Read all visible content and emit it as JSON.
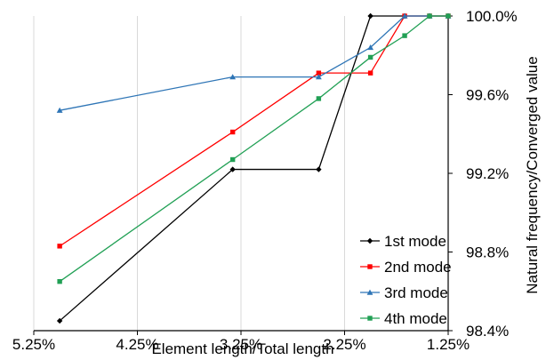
{
  "chart_data": {
    "type": "line",
    "xlabel": "Element length/Total length",
    "ylabel": "Natural frequency/Converged value",
    "xlim": [
      5.25,
      1.25
    ],
    "x_reversed": true,
    "ylim": [
      98.4,
      100.0
    ],
    "x_ticks": [
      5.25,
      4.25,
      3.25,
      2.25,
      1.25
    ],
    "x_tick_labels": [
      "5.25%",
      "4.25%",
      "3.25%",
      "2.25%",
      "1.25%"
    ],
    "y_ticks": [
      98.4,
      98.8,
      99.2,
      99.6,
      100.0
    ],
    "y_tick_labels": [
      "98.4%",
      "98.8%",
      "99.2%",
      "99.6%",
      "100.0%"
    ],
    "y_axis_side": "right",
    "grid": {
      "vertical": true,
      "horizontal": false
    },
    "legend": {
      "placement": "bottom-right"
    },
    "x": [
      5.0,
      3.33,
      2.5,
      2.0,
      1.67,
      1.43,
      1.25
    ],
    "series": [
      {
        "name": "1st mode",
        "color": "#000000",
        "marker": "diamond",
        "values": [
          98.45,
          99.22,
          99.22,
          100.0,
          100.0,
          100.0,
          100.0
        ]
      },
      {
        "name": "2nd mode",
        "color": "#ff0000",
        "marker": "square",
        "values": [
          98.83,
          99.41,
          99.71,
          99.71,
          100.0,
          100.0,
          100.0
        ]
      },
      {
        "name": "3rd mode",
        "color": "#2e75b6",
        "marker": "triangle",
        "values": [
          99.52,
          99.69,
          99.69,
          99.84,
          100.0,
          100.0,
          100.0
        ]
      },
      {
        "name": "4th mode",
        "color": "#21a055",
        "marker": "square",
        "values": [
          98.65,
          99.27,
          99.58,
          99.79,
          99.9,
          100.0,
          100.0
        ]
      }
    ]
  }
}
